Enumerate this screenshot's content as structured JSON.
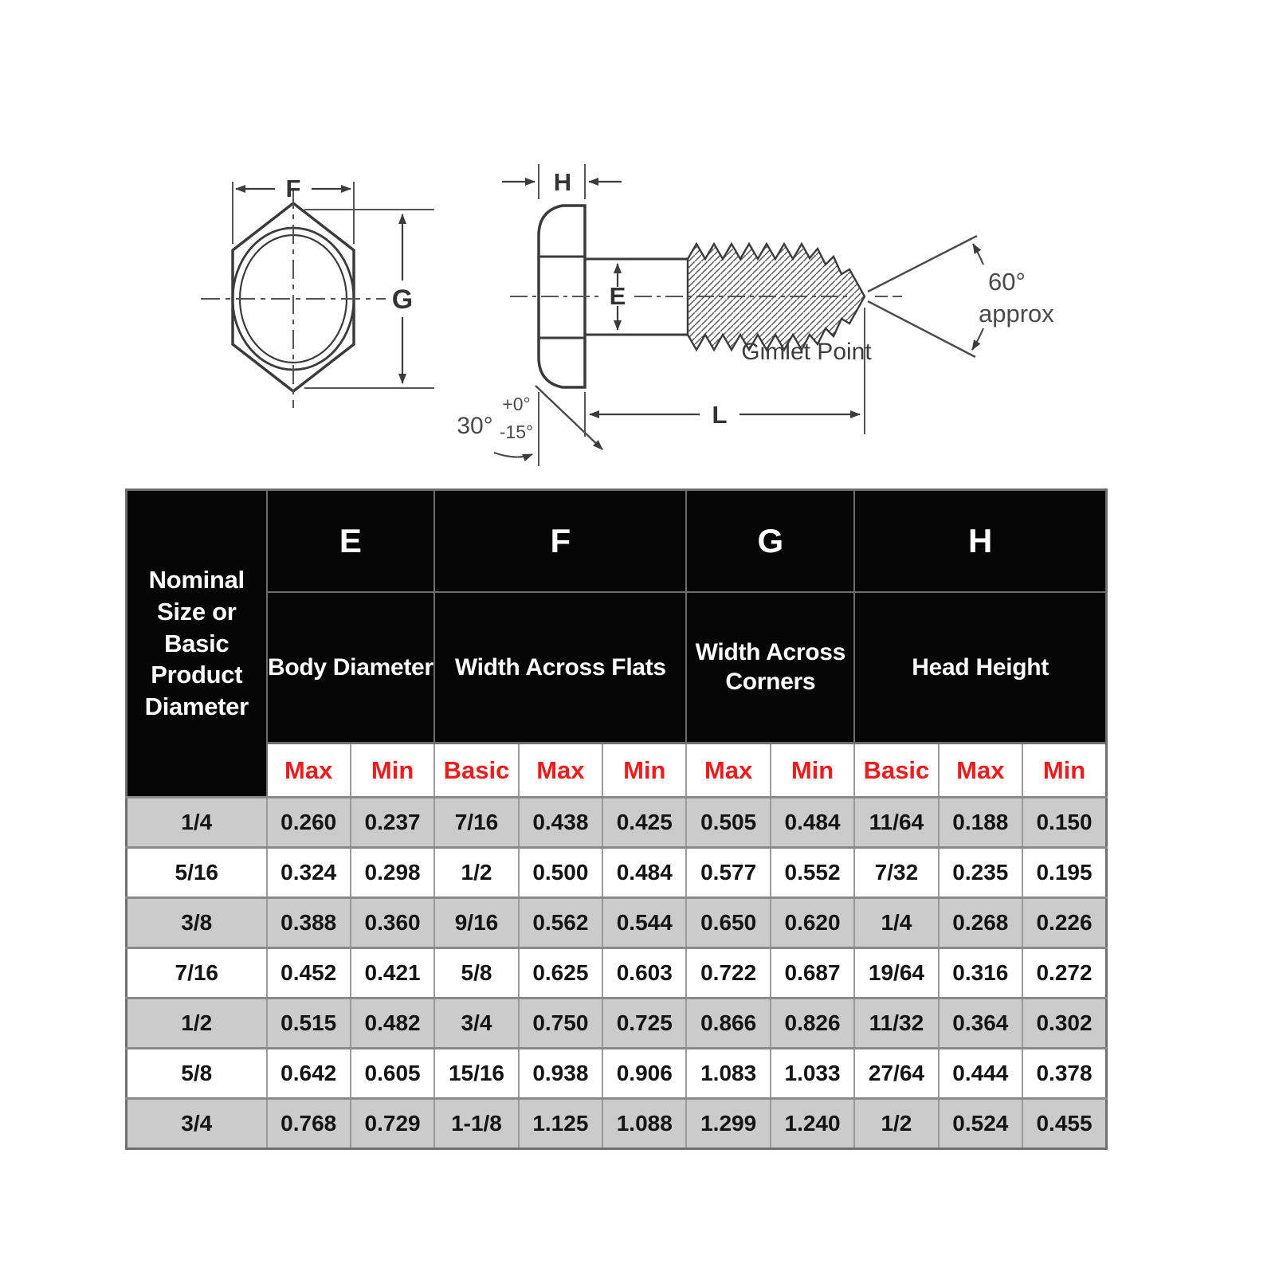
{
  "diagram": {
    "front_view": {
      "f_label": "F",
      "g_label": "G"
    },
    "side_view": {
      "h_label": "H",
      "e_label": "E",
      "l_label": "L",
      "chamfer_angle": "30°",
      "chamfer_tol_plus": "+0°",
      "chamfer_tol_minus": "-15°",
      "point_angle": "60°",
      "point_angle_qualifier": "approx",
      "point_name": "Gimlet Point"
    }
  },
  "table": {
    "corner_header": "Nominal Size or Basic Product Diameter",
    "groups": [
      {
        "letter": "E",
        "name": "Body Diameter",
        "subs": [
          "Max",
          "Min"
        ]
      },
      {
        "letter": "F",
        "name": "Width Across Flats",
        "subs": [
          "Basic",
          "Max",
          "Min"
        ]
      },
      {
        "letter": "G",
        "name": "Width Across Corners",
        "subs": [
          "Max",
          "Min"
        ]
      },
      {
        "letter": "H",
        "name": "Head Height",
        "subs": [
          "Basic",
          "Max",
          "Min"
        ]
      }
    ],
    "rows": [
      {
        "size": "1/4",
        "values": [
          "0.260",
          "0.237",
          "7/16",
          "0.438",
          "0.425",
          "0.505",
          "0.484",
          "11/64",
          "0.188",
          "0.150"
        ]
      },
      {
        "size": "5/16",
        "values": [
          "0.324",
          "0.298",
          "1/2",
          "0.500",
          "0.484",
          "0.577",
          "0.552",
          "7/32",
          "0.235",
          "0.195"
        ]
      },
      {
        "size": "3/8",
        "values": [
          "0.388",
          "0.360",
          "9/16",
          "0.562",
          "0.544",
          "0.650",
          "0.620",
          "1/4",
          "0.268",
          "0.226"
        ]
      },
      {
        "size": "7/16",
        "values": [
          "0.452",
          "0.421",
          "5/8",
          "0.625",
          "0.603",
          "0.722",
          "0.687",
          "19/64",
          "0.316",
          "0.272"
        ]
      },
      {
        "size": "1/2",
        "values": [
          "0.515",
          "0.482",
          "3/4",
          "0.750",
          "0.725",
          "0.866",
          "0.826",
          "11/32",
          "0.364",
          "0.302"
        ]
      },
      {
        "size": "5/8",
        "values": [
          "0.642",
          "0.605",
          "15/16",
          "0.938",
          "0.906",
          "1.083",
          "1.033",
          "27/64",
          "0.444",
          "0.378"
        ]
      },
      {
        "size": "3/4",
        "values": [
          "0.768",
          "0.729",
          "1-1/8",
          "1.125",
          "1.088",
          "1.299",
          "1.240",
          "1/2",
          "0.524",
          "0.455"
        ]
      }
    ],
    "colors": {
      "header_bg": "#060606",
      "header_text": "#ffffff",
      "subheader_text": "#ee1c1c",
      "row_shaded_bg": "#cbcbcb",
      "row_plain_bg": "#ffffff",
      "grid_border": "#9a9a9a"
    }
  }
}
